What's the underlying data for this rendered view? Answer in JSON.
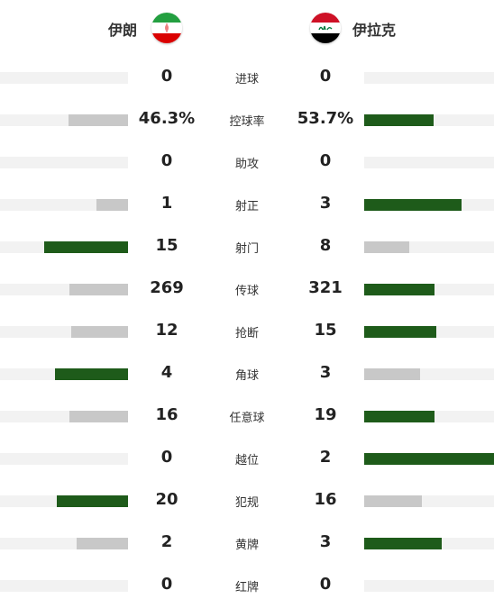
{
  "teams": {
    "home": {
      "name": "伊朗",
      "flag": "iran-flag-icon"
    },
    "away": {
      "name": "伊拉克",
      "flag": "iraq-flag-icon"
    }
  },
  "colors": {
    "bar_win": "#1e5b1a",
    "bar_lose": "#c8c8c8",
    "track": "#f2f2f2"
  },
  "stats": [
    {
      "label": "进球",
      "home": "0",
      "away": "0",
      "home_share": 0,
      "away_share": 0,
      "home_win": false,
      "away_win": false
    },
    {
      "label": "控球率",
      "home": "46.3%",
      "away": "53.7%",
      "home_share": 0.463,
      "away_share": 0.537,
      "home_win": false,
      "away_win": true
    },
    {
      "label": "助攻",
      "home": "0",
      "away": "0",
      "home_share": 0,
      "away_share": 0,
      "home_win": false,
      "away_win": false
    },
    {
      "label": "射正",
      "home": "1",
      "away": "3",
      "home_share": 0.25,
      "away_share": 0.75,
      "home_win": false,
      "away_win": true
    },
    {
      "label": "射门",
      "home": "15",
      "away": "8",
      "home_share": 0.652,
      "away_share": 0.348,
      "home_win": true,
      "away_win": false
    },
    {
      "label": "传球",
      "home": "269",
      "away": "321",
      "home_share": 0.456,
      "away_share": 0.544,
      "home_win": false,
      "away_win": true
    },
    {
      "label": "抢断",
      "home": "12",
      "away": "15",
      "home_share": 0.444,
      "away_share": 0.556,
      "home_win": false,
      "away_win": true
    },
    {
      "label": "角球",
      "home": "4",
      "away": "3",
      "home_share": 0.571,
      "away_share": 0.429,
      "home_win": true,
      "away_win": false
    },
    {
      "label": "任意球",
      "home": "16",
      "away": "19",
      "home_share": 0.457,
      "away_share": 0.543,
      "home_win": false,
      "away_win": true
    },
    {
      "label": "越位",
      "home": "0",
      "away": "2",
      "home_share": 0,
      "away_share": 1,
      "home_win": false,
      "away_win": true
    },
    {
      "label": "犯规",
      "home": "20",
      "away": "16",
      "home_share": 0.556,
      "away_share": 0.444,
      "home_win": true,
      "away_win": false
    },
    {
      "label": "黄牌",
      "home": "2",
      "away": "3",
      "home_share": 0.4,
      "away_share": 0.6,
      "home_win": false,
      "away_win": true
    },
    {
      "label": "红牌",
      "home": "0",
      "away": "0",
      "home_share": 0,
      "away_share": 0,
      "home_win": false,
      "away_win": false
    }
  ]
}
